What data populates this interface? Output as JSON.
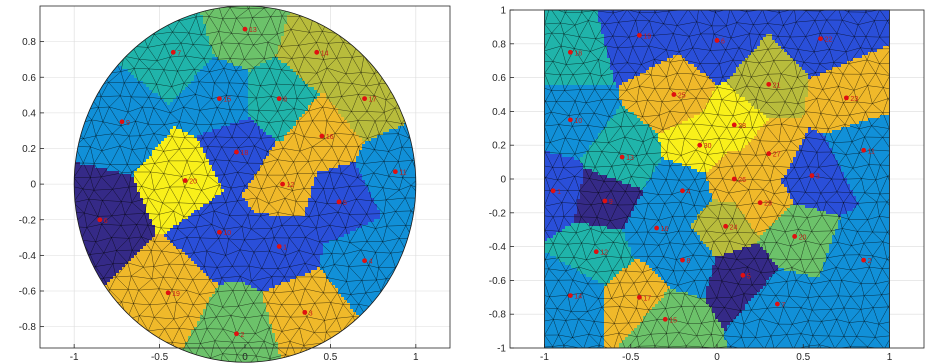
{
  "colors": {
    "palette": [
      "#352a87",
      "#2a4fd9",
      "#1190d8",
      "#20b4aa",
      "#6cc26a",
      "#b8bc3c",
      "#f0b92a",
      "#f9f01a"
    ],
    "marker": "#e01010",
    "mesh": "#000000",
    "axis": "#262626",
    "grid": "#dcdcdc"
  },
  "chart_data": [
    {
      "type": "heatmap",
      "subtype": "triangular-mesh-voronoi",
      "domain_shape": "disk",
      "xlim": [
        -1.2,
        1.2
      ],
      "ylim": [
        -0.92,
        1.0
      ],
      "grid": true,
      "x_ticks": [
        "-1",
        "-0.5",
        "0",
        "0.5",
        "1"
      ],
      "y_ticks": [
        "0.8",
        "0.6",
        "0.4",
        "0.2",
        "0",
        "-0.2",
        "-0.4",
        "-0.6",
        "-0.8"
      ],
      "points": [
        {
          "label": "13",
          "x": 0.0,
          "y": 0.87,
          "level": 4
        },
        {
          "label": "7",
          "x": -0.42,
          "y": 0.74,
          "level": 3
        },
        {
          "label": "14",
          "x": 0.42,
          "y": 0.74,
          "level": 5
        },
        {
          "label": "15",
          "x": -0.15,
          "y": 0.48,
          "level": 2
        },
        {
          "label": "8",
          "x": 0.2,
          "y": 0.48,
          "level": 3
        },
        {
          "label": "17",
          "x": 0.7,
          "y": 0.48,
          "level": 5
        },
        {
          "label": "9",
          "x": -0.72,
          "y": 0.35,
          "level": 2
        },
        {
          "label": "16",
          "x": 0.45,
          "y": 0.27,
          "level": 6
        },
        {
          "label": "18",
          "x": -0.05,
          "y": 0.18,
          "level": 1
        },
        {
          "label": "20",
          "x": -0.35,
          "y": 0.02,
          "level": 7
        },
        {
          "label": "12",
          "x": 0.22,
          "y": 0.0,
          "level": 6
        },
        {
          "label": "11",
          "x": 0.88,
          "y": 0.07,
          "level": 2
        },
        {
          "label": "5",
          "x": 0.55,
          "y": -0.1,
          "level": 1
        },
        {
          "label": "6",
          "x": -0.85,
          "y": -0.2,
          "level": 0
        },
        {
          "label": "10",
          "x": -0.15,
          "y": -0.27,
          "level": 1
        },
        {
          "label": "1",
          "x": 0.2,
          "y": -0.35,
          "level": 1
        },
        {
          "label": "4",
          "x": 0.7,
          "y": -0.43,
          "level": 2
        },
        {
          "label": "19",
          "x": -0.45,
          "y": -0.61,
          "level": 6
        },
        {
          "label": "3",
          "x": 0.35,
          "y": -0.72,
          "level": 6
        },
        {
          "label": "2",
          "x": -0.05,
          "y": -0.84,
          "level": 4
        }
      ]
    },
    {
      "type": "heatmap",
      "subtype": "triangular-mesh-voronoi",
      "domain_shape": "square",
      "xlim": [
        -1.2,
        1.2
      ],
      "ylim": [
        -1.0,
        1.0
      ],
      "grid": true,
      "x_ticks": [
        "-1",
        "-0.5",
        "0",
        "0.5",
        "1"
      ],
      "y_ticks": [
        "1",
        "0.8",
        "0.6",
        "0.4",
        "0.2",
        "0",
        "-0.2",
        "-0.4",
        "-0.6",
        "-0.8",
        "-1"
      ],
      "points": [
        {
          "label": "19",
          "x": -0.45,
          "y": 0.85,
          "level": 1
        },
        {
          "label": "6",
          "x": 0.0,
          "y": 0.82,
          "level": 1
        },
        {
          "label": "22",
          "x": 0.6,
          "y": 0.83,
          "level": 1
        },
        {
          "label": "18",
          "x": -0.85,
          "y": 0.75,
          "level": 3
        },
        {
          "label": "21",
          "x": 0.3,
          "y": 0.56,
          "level": 5
        },
        {
          "label": "25",
          "x": -0.25,
          "y": 0.5,
          "level": 6
        },
        {
          "label": "23",
          "x": 0.75,
          "y": 0.48,
          "level": 6
        },
        {
          "label": "10",
          "x": -0.85,
          "y": 0.35,
          "level": 2
        },
        {
          "label": "28",
          "x": 0.1,
          "y": 0.32,
          "level": 7
        },
        {
          "label": "30",
          "x": -0.1,
          "y": 0.2,
          "level": 7
        },
        {
          "label": "27",
          "x": 0.3,
          "y": 0.15,
          "level": 6
        },
        {
          "label": "11",
          "x": 0.85,
          "y": 0.17,
          "level": 2
        },
        {
          "label": "13",
          "x": -0.55,
          "y": 0.13,
          "level": 3
        },
        {
          "label": "26",
          "x": 0.1,
          "y": 0.0,
          "level": 6
        },
        {
          "label": "3",
          "x": 0.55,
          "y": 0.02,
          "level": 1
        },
        {
          "label": "1",
          "x": -0.95,
          "y": -0.07,
          "level": 1
        },
        {
          "label": "4",
          "x": -0.2,
          "y": -0.07,
          "level": 2
        },
        {
          "label": "9",
          "x": -0.65,
          "y": -0.13,
          "level": 0
        },
        {
          "label": "29",
          "x": 0.25,
          "y": -0.14,
          "level": 6
        },
        {
          "label": "16",
          "x": -0.35,
          "y": -0.29,
          "level": 2
        },
        {
          "label": "24",
          "x": 0.05,
          "y": -0.28,
          "level": 5
        },
        {
          "label": "20",
          "x": 0.45,
          "y": -0.34,
          "level": 4
        },
        {
          "label": "12",
          "x": -0.7,
          "y": -0.43,
          "level": 3
        },
        {
          "label": "8",
          "x": -0.2,
          "y": -0.48,
          "level": 2
        },
        {
          "label": "2",
          "x": 0.85,
          "y": -0.48,
          "level": 2
        },
        {
          "label": "5",
          "x": 0.15,
          "y": -0.57,
          "level": 0
        },
        {
          "label": "14",
          "x": -0.85,
          "y": -0.69,
          "level": 2
        },
        {
          "label": "17",
          "x": -0.45,
          "y": -0.7,
          "level": 6
        },
        {
          "label": "7",
          "x": 0.35,
          "y": -0.74,
          "level": 2
        },
        {
          "label": "15",
          "x": -0.3,
          "y": -0.83,
          "level": 4
        }
      ]
    }
  ]
}
